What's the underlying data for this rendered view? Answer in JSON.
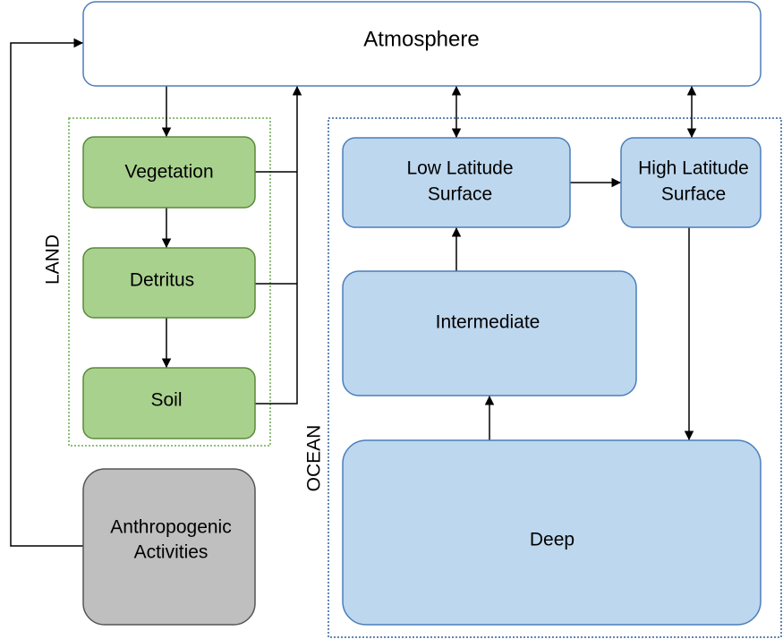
{
  "nodes": [
    {
      "id": "atmosphere",
      "lines": [
        "Atmosphere"
      ]
    },
    {
      "id": "vegetation",
      "lines": [
        "Vegetation"
      ]
    },
    {
      "id": "detritus",
      "lines": [
        "Detritus"
      ]
    },
    {
      "id": "soil",
      "lines": [
        "Soil"
      ]
    },
    {
      "id": "anthropogenic",
      "lines": [
        "Anthropogenic",
        "Activities"
      ]
    },
    {
      "id": "low-latitude",
      "lines": [
        "Low Latitude",
        "Surface"
      ]
    },
    {
      "id": "high-latitude",
      "lines": [
        "High Latitude",
        "Surface"
      ]
    },
    {
      "id": "intermediate",
      "lines": [
        "Intermediate"
      ]
    },
    {
      "id": "deep",
      "lines": [
        "Deep"
      ]
    }
  ],
  "groups": [
    {
      "label": "LAND"
    },
    {
      "label": "OCEAN"
    }
  ]
}
